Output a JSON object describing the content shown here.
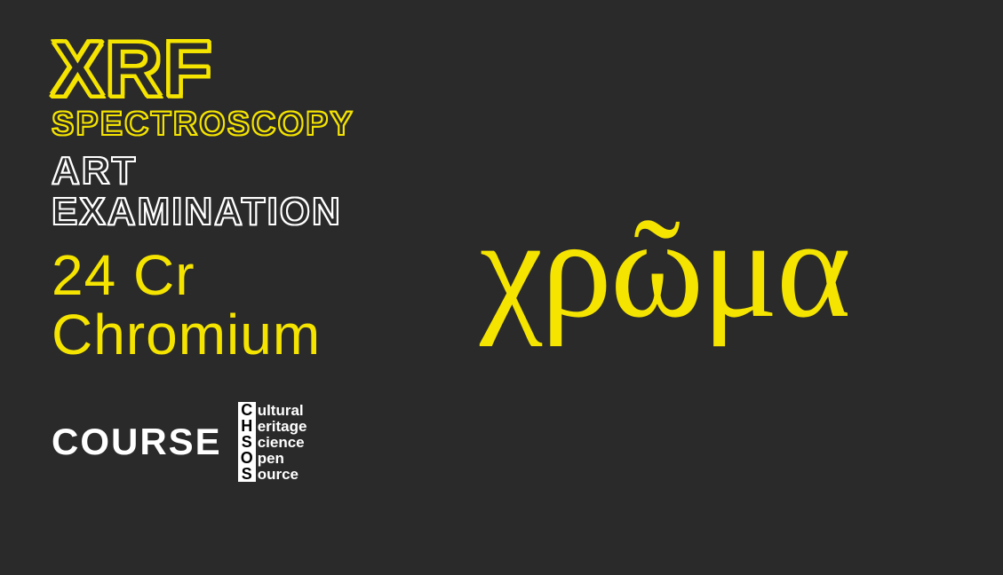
{
  "colors": {
    "background": "#2a2a2a",
    "yellow": "#f5e400",
    "white": "#ffffff",
    "black": "#000000"
  },
  "title": {
    "line1": "XRF",
    "line2": "SPECTROSCOPY",
    "line3": "ART",
    "line4": "EXAMINATION",
    "line1_fontsize": 88,
    "line2_fontsize": 38,
    "line34_fontsize": 44,
    "line1_color": "#f5e400",
    "line2_color": "#f5e400",
    "line34_color": "#ffffff",
    "style": "outlined"
  },
  "element": {
    "number_symbol": "24 Cr",
    "name": "Chromium",
    "fontsize": 64,
    "color": "#f5e400"
  },
  "course": {
    "label": "COURSE",
    "fontsize": 42,
    "color": "#ffffff"
  },
  "chsos": {
    "rows": [
      {
        "cap": "C",
        "rest": "ultural"
      },
      {
        "cap": "H",
        "rest": "eritage"
      },
      {
        "cap": "S",
        "rest": "cience"
      },
      {
        "cap": "O",
        "rest": "pen"
      },
      {
        "cap": "S",
        "rest": "ource"
      }
    ],
    "cap_bg": "#ffffff",
    "cap_color": "#000000",
    "rest_color": "#ffffff",
    "fontsize": 18
  },
  "greek": {
    "text": "χρῶμα",
    "fontsize": 160,
    "color": "#f5e400"
  }
}
